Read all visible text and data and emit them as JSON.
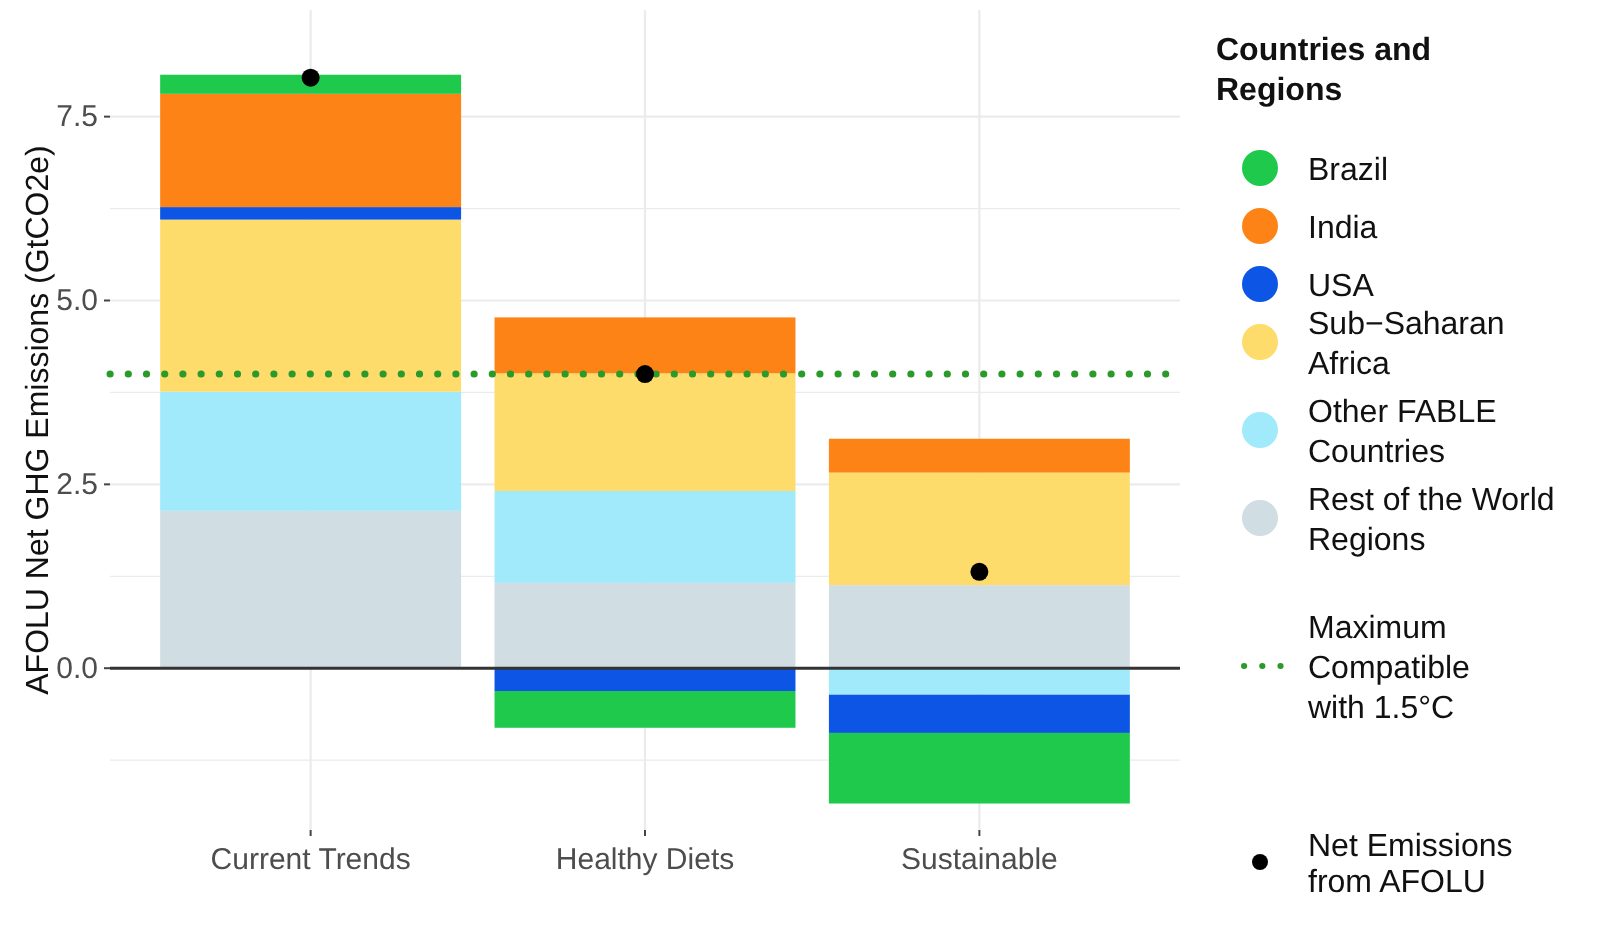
{
  "chart_data": {
    "type": "bar",
    "stacked": true,
    "ylabel": "AFOLU Net GHG Emissions (GtCO2e)",
    "legend_title": "Countries and Regions",
    "categories": [
      "Current Trends",
      "Healthy Diets",
      "Sustainable"
    ],
    "series": [
      {
        "name": "Rest of the World Regions",
        "color": "#d0dde2",
        "values": [
          2.14,
          1.16,
          1.13
        ]
      },
      {
        "name": "Other FABLE Countries",
        "color": "#a1eafc",
        "values": [
          1.62,
          1.25,
          -0.36
        ]
      },
      {
        "name": "Sub−Saharan Africa",
        "color": "#fedc6b",
        "values": [
          2.34,
          1.6,
          1.53
        ]
      },
      {
        "name": "USA",
        "color": "#0c55e5",
        "values": [
          0.17,
          -0.31,
          -0.52
        ]
      },
      {
        "name": "India",
        "color": "#fe8316",
        "values": [
          1.54,
          0.76,
          0.46
        ]
      },
      {
        "name": "Brazil",
        "color": "#1fc94b",
        "values": [
          0.26,
          -0.5,
          -0.96
        ]
      },
      {
        "name": "Net Emissions from AFOLU",
        "type": "scatter",
        "color": "#000000",
        "values": [
          8.03,
          4.0,
          1.31
        ]
      }
    ],
    "ref_lines": [
      {
        "axis": "y",
        "value": 4.0,
        "label": "Maximum Compatible with 1.5°C",
        "color": "#2a9a2a",
        "line_style": "dotted"
      }
    ],
    "ylim": [
      -2.2,
      8.95
    ],
    "yticks": [
      {
        "value": -1.25,
        "label": null
      },
      {
        "value": 0,
        "label": "0.0"
      },
      {
        "value": 1.25,
        "label": null
      },
      {
        "value": 2.5,
        "label": "2.5"
      },
      {
        "value": 3.75,
        "label": null
      },
      {
        "value": 5,
        "label": "5.0"
      },
      {
        "value": 6.25,
        "label": null
      },
      {
        "value": 7.5,
        "label": "7.5"
      }
    ],
    "grid": true,
    "legend": "right"
  }
}
